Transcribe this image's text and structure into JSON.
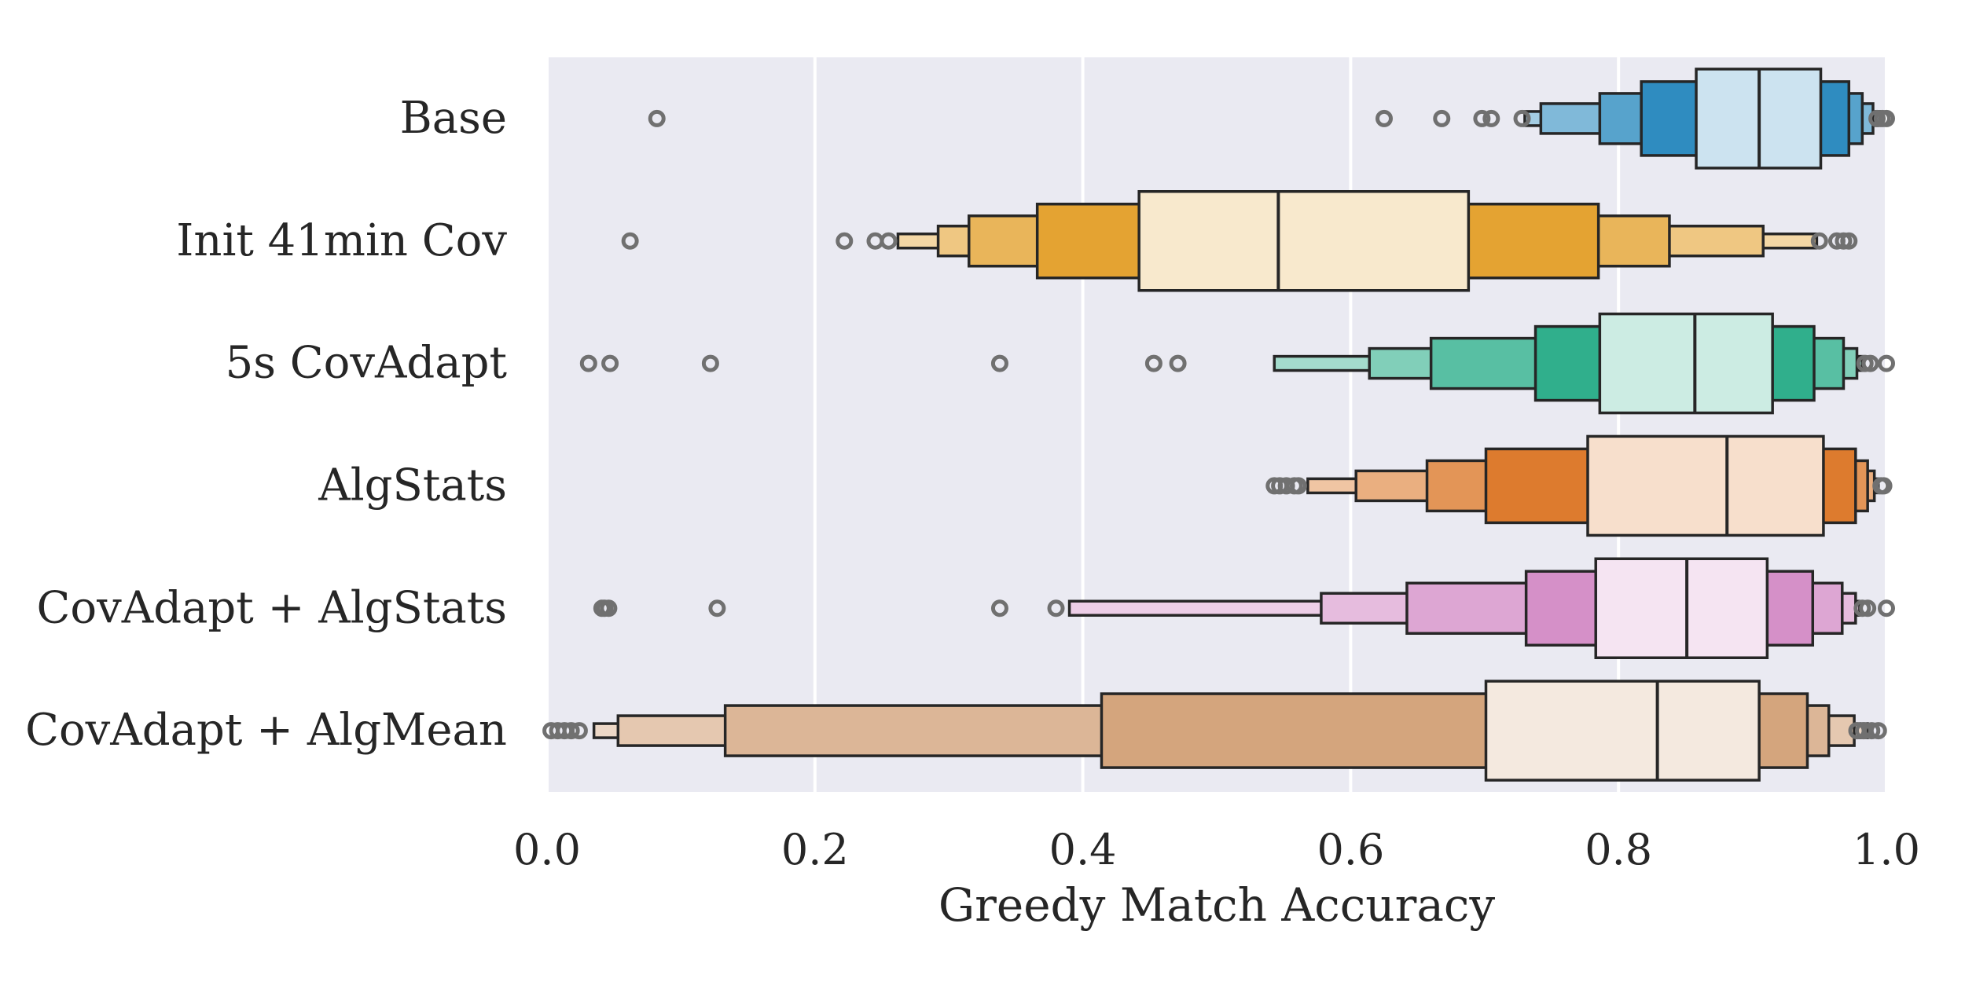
{
  "chart_data": {
    "type": "boxen",
    "orientation": "horizontal",
    "title": "",
    "xlabel": "Greedy Match Accuracy",
    "ylabel": "",
    "xlim": [
      0.0,
      1.0
    ],
    "xticks": [
      "0.0",
      "0.2",
      "0.4",
      "0.6",
      "0.8",
      "1.0"
    ],
    "grid": true,
    "categories": [
      "Base",
      "Init 41min Cov",
      "5s CovAdapt",
      "AlgStats",
      "CovAdapt + AlgStats",
      "CovAdapt + AlgMean"
    ],
    "series": [
      {
        "color": "#0173b2",
        "median": 0.905,
        "boxes": [
          [
            0.858,
            0.951
          ],
          [
            0.817,
            0.972
          ],
          [
            0.786,
            0.982
          ],
          [
            0.742,
            0.99
          ],
          [
            0.73,
            0.995
          ]
        ],
        "outliers": [
          0.082,
          0.625,
          0.668,
          0.698,
          0.705,
          0.728,
          0.993,
          0.997,
          1.0
        ]
      },
      {
        "color": "#de8f05",
        "median": 0.546,
        "boxes": [
          [
            0.442,
            0.688
          ],
          [
            0.366,
            0.785
          ],
          [
            0.315,
            0.838
          ],
          [
            0.292,
            0.908
          ],
          [
            0.262,
            0.948
          ]
        ],
        "outliers": [
          0.062,
          0.222,
          0.245,
          0.255,
          0.95,
          0.963,
          0.968,
          0.972
        ]
      },
      {
        "color": "#029e73",
        "median": 0.857,
        "boxes": [
          [
            0.786,
            0.915
          ],
          [
            0.738,
            0.946
          ],
          [
            0.66,
            0.968
          ],
          [
            0.614,
            0.978
          ],
          [
            0.543,
            0.982
          ]
        ],
        "outliers": [
          0.031,
          0.047,
          0.122,
          0.338,
          0.453,
          0.471,
          0.984,
          0.988,
          1.0
        ]
      },
      {
        "color": "#d55e00",
        "median": 0.881,
        "boxes": [
          [
            0.777,
            0.953
          ],
          [
            0.701,
            0.977
          ],
          [
            0.657,
            0.986
          ],
          [
            0.604,
            0.991
          ],
          [
            0.568,
            0.994
          ]
        ],
        "outliers": [
          0.543,
          0.547,
          0.552,
          0.558,
          0.561,
          0.996,
          0.998
        ]
      },
      {
        "color": "#cc78bc",
        "median": 0.851,
        "boxes": [
          [
            0.783,
            0.911
          ],
          [
            0.731,
            0.945
          ],
          [
            0.642,
            0.967
          ],
          [
            0.578,
            0.977
          ],
          [
            0.39,
            0.98
          ]
        ],
        "outliers": [
          0.041,
          0.043,
          0.046,
          0.127,
          0.338,
          0.38,
          0.982,
          0.986,
          1.0
        ]
      },
      {
        "color": "#ca9161",
        "median": 0.829,
        "boxes": [
          [
            0.701,
            0.905
          ],
          [
            0.414,
            0.941
          ],
          [
            0.133,
            0.957
          ],
          [
            0.053,
            0.976
          ],
          [
            0.035,
            0.986
          ]
        ],
        "outliers": [
          0.003,
          0.008,
          0.013,
          0.018,
          0.024,
          0.978,
          0.983,
          0.989,
          0.994
        ]
      }
    ]
  }
}
